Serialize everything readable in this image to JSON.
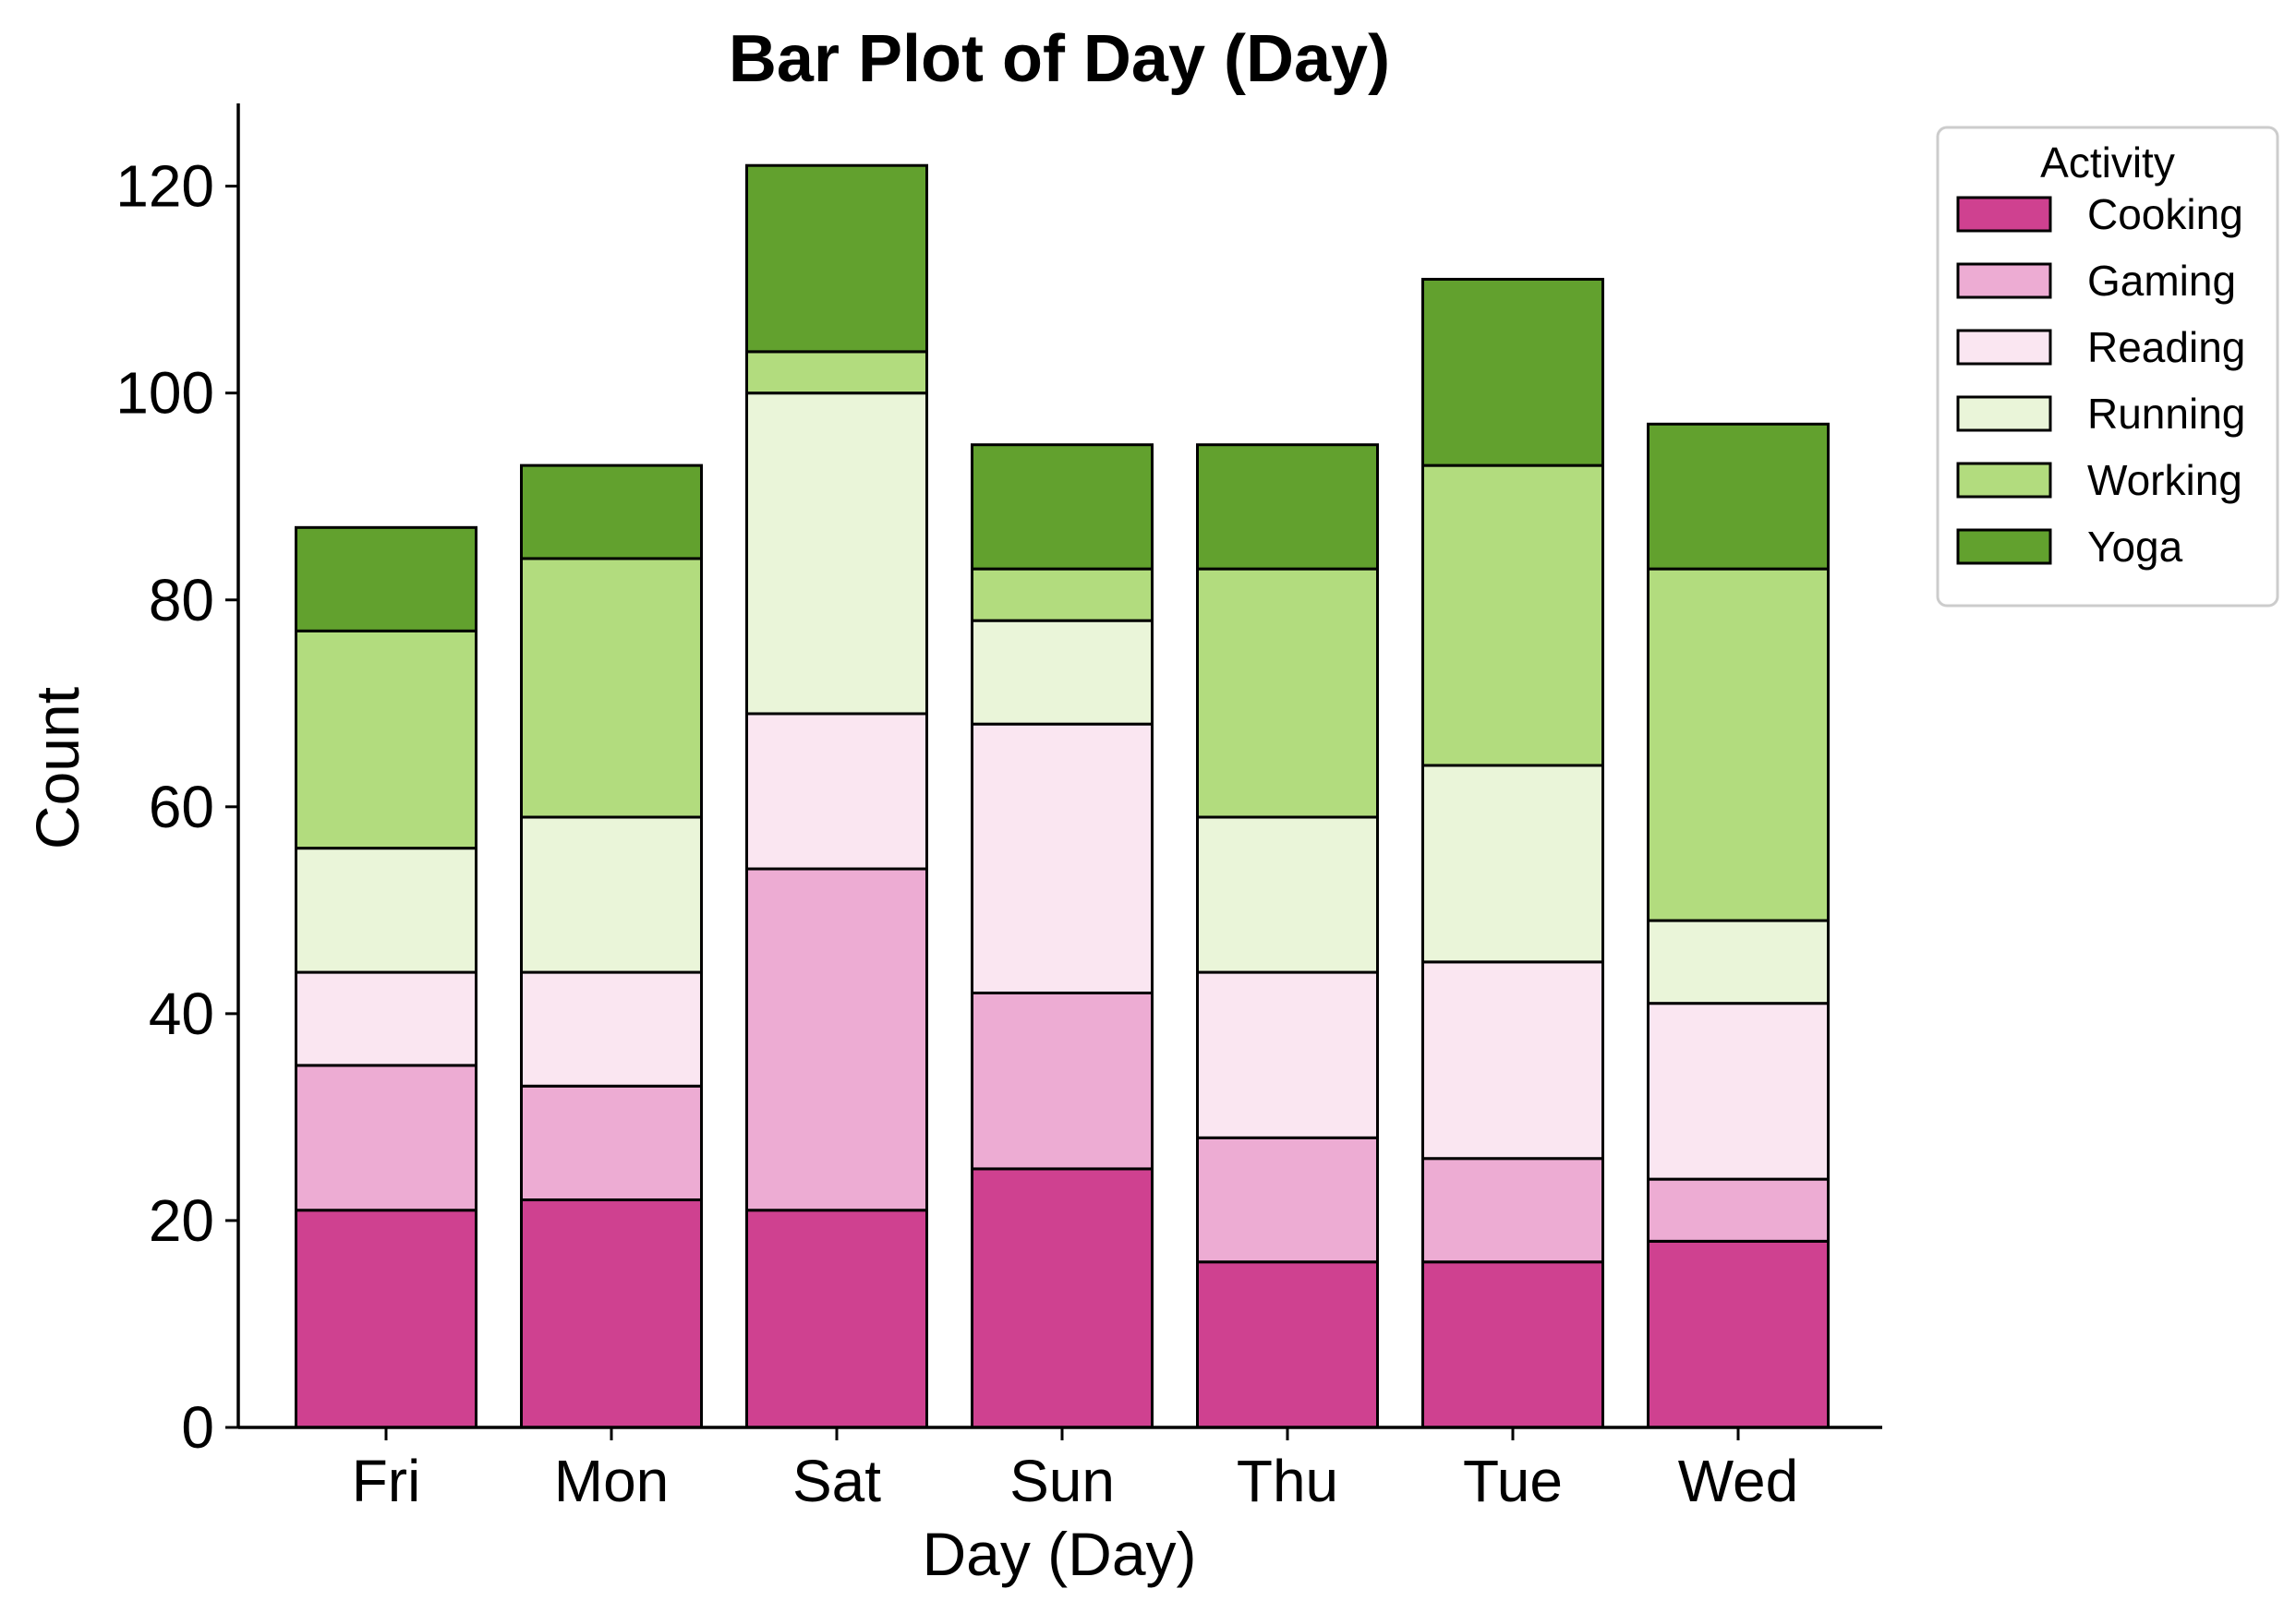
{
  "chart_data": {
    "type": "bar",
    "stacked": true,
    "title": "Bar Plot of Day (Day)",
    "xlabel": "Day (Day)",
    "ylabel": "Count",
    "categories": [
      "Fri",
      "Mon",
      "Sat",
      "Sun",
      "Thu",
      "Tue",
      "Wed"
    ],
    "ylim": [
      0,
      128
    ],
    "yticks": [
      0,
      20,
      40,
      60,
      80,
      100,
      120
    ],
    "grid": false,
    "legend": {
      "title": "Activity",
      "placement": "outside-top-right"
    },
    "series": [
      {
        "name": "Cooking",
        "color": "#cf4190",
        "values": [
          21,
          22,
          21,
          25,
          16,
          16,
          18
        ]
      },
      {
        "name": "Gaming",
        "color": "#edacd3",
        "values": [
          14,
          11,
          33,
          17,
          12,
          10,
          6
        ]
      },
      {
        "name": "Reading",
        "color": "#fae6f1",
        "values": [
          9,
          11,
          15,
          26,
          16,
          19,
          17
        ]
      },
      {
        "name": "Running",
        "color": "#eaf5d9",
        "values": [
          12,
          15,
          31,
          10,
          15,
          19,
          8
        ]
      },
      {
        "name": "Working",
        "color": "#b2dc7e",
        "values": [
          21,
          25,
          4,
          5,
          24,
          29,
          34
        ]
      },
      {
        "name": "Yoga",
        "color": "#62a12e",
        "values": [
          10,
          9,
          18,
          12,
          12,
          18,
          14
        ]
      }
    ]
  }
}
